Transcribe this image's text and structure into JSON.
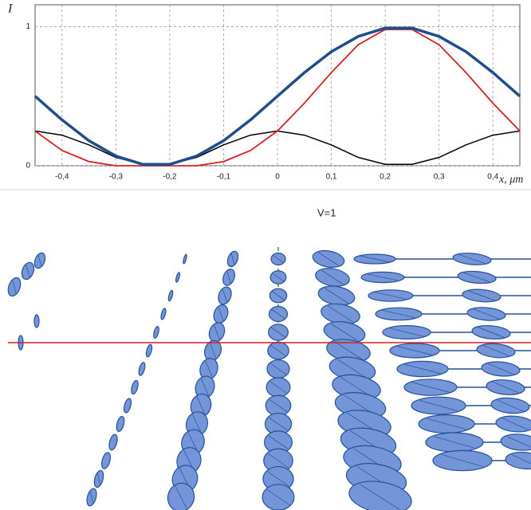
{
  "chart_data": {
    "type": "line",
    "y_label": "I",
    "x_label": "x, μm",
    "annotation": "V=1",
    "x": [
      -0.45,
      -0.4,
      -0.35,
      -0.3,
      -0.25,
      -0.2,
      -0.15,
      -0.1,
      -0.05,
      0,
      0.05,
      0.1,
      0.15,
      0.2,
      0.25,
      0.3,
      0.35,
      0.4,
      0.45
    ],
    "series": [
      {
        "name": null,
        "color": "#000000",
        "width": 1.5,
        "values": [
          0.25,
          0.22,
          0.15,
          0.06,
          0.01,
          0.01,
          0.06,
          0.15,
          0.22,
          0.25,
          0.22,
          0.15,
          0.06,
          0.01,
          0.01,
          0.06,
          0.15,
          0.22,
          0.25
        ]
      },
      {
        "name": null,
        "color": "#d42020",
        "width": 1.8,
        "values": [
          0.25,
          0.11,
          0.03,
          0,
          0,
          0,
          0,
          0.03,
          0.11,
          0.25,
          0.45,
          0.67,
          0.87,
          0.98,
          0.98,
          0.87,
          0.67,
          0.45,
          0.25
        ]
      },
      {
        "name": null,
        "color": "#1f4e8c",
        "width": 3.5,
        "values": [
          0.5,
          0.33,
          0.18,
          0.07,
          0.01,
          0.01,
          0.07,
          0.18,
          0.33,
          0.5,
          0.67,
          0.82,
          0.93,
          0.99,
          0.99,
          0.93,
          0.82,
          0.67,
          0.5
        ]
      }
    ],
    "xlim": [
      -0.45,
      0.45
    ],
    "xticks": [
      {
        "value": -0.4,
        "label": "-0,4"
      },
      {
        "value": -0.3,
        "label": "-0,3"
      },
      {
        "value": -0.2,
        "label": "-0,2"
      },
      {
        "value": -0.1,
        "label": "-0,1"
      },
      0,
      {
        "value": 0.1,
        "label": "0,1"
      },
      {
        "value": 0.2,
        "label": "0,2"
      },
      {
        "value": 0.3,
        "label": "0,3"
      },
      {
        "value": 0.4,
        "label": "0,4"
      }
    ],
    "ylim": [
      0,
      1.1
    ],
    "yticks": [
      0,
      1
    ],
    "grid": true
  }
}
